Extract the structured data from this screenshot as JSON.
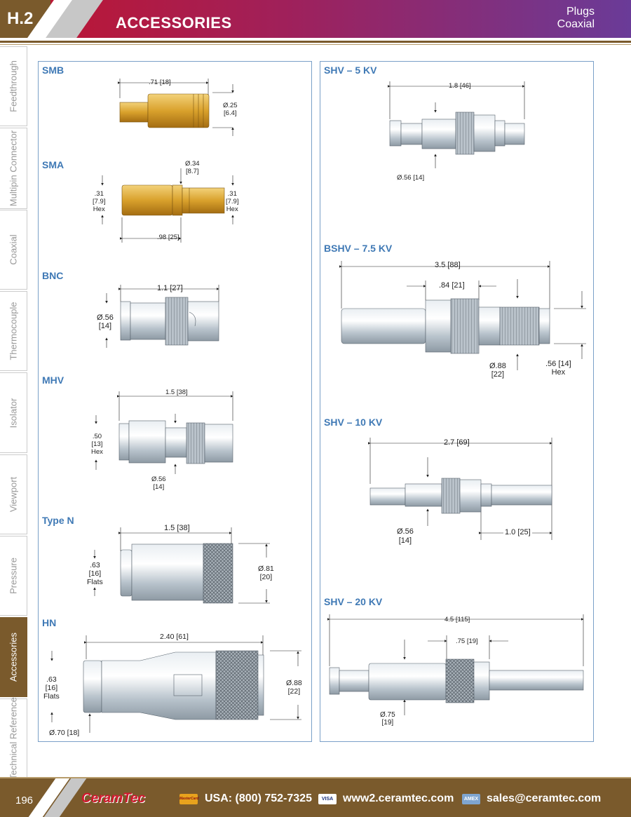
{
  "header": {
    "code": "H.2",
    "title": "ACCESSORIES",
    "subtitle1": "Plugs",
    "subtitle2": "Coaxial"
  },
  "sidebar": {
    "tabs": [
      "Feedthrough",
      "Multipin Connector",
      "Coaxial",
      "Thermocouple",
      "Isolator",
      "Viewport",
      "Pressure",
      "Accessories",
      "Technical Reference"
    ],
    "active": "Accessories"
  },
  "left_panel": {
    "smb": {
      "label": "SMB",
      "len": ".71 [18]",
      "dia1": "Ø.25",
      "dia2": "[6.4]"
    },
    "sma": {
      "label": "SMA",
      "dia1": "Ø.34",
      "dia2": "[8.7]",
      "hexl1": ".31",
      "hexl2": "[7.9]",
      "hexl3": "Hex",
      "hexr1": ".31",
      "hexr2": "[7.9]",
      "hexr3": "Hex",
      "len": ".98 [25]"
    },
    "bnc": {
      "label": "BNC",
      "len": "1.1 [27]",
      "dia1": "Ø.56",
      "dia2": "[14]"
    },
    "mhv": {
      "label": "MHV",
      "len": "1.5 [38]",
      "hex1": ".50",
      "hex2": "[13]",
      "hex3": "Hex",
      "dia1": "Ø.56",
      "dia2": "[14]"
    },
    "typen": {
      "label": "Type N",
      "len": "1.5 [38]",
      "fl1": ".63",
      "fl2": "[16]",
      "fl3": "Flats",
      "dia1": "Ø.81",
      "dia2": "[20]"
    },
    "hn": {
      "label": "HN",
      "len": "2.40 [61]",
      "fl1": ".63",
      "fl2": "[16]",
      "fl3": "Flats",
      "dia1": "Ø.88",
      "dia2": "[22]",
      "dia3": "Ø.70 [18]"
    }
  },
  "right_panel": {
    "shv5": {
      "label": "SHV – 5 KV",
      "len": "1.8 [46]",
      "dia": "Ø.56 [14]"
    },
    "bshv": {
      "label": "BSHV – 7.5 KV",
      "len": "3.5 [88]",
      "len2": ".84 [21]",
      "dia1": "Ø.88",
      "dia2": "[22]",
      "hex1": ".56 [14]",
      "hex2": "Hex"
    },
    "shv10": {
      "label": "SHV – 10 KV",
      "len": "2.7 [69]",
      "dia1": "Ø.56",
      "dia2": "[14]",
      "len2": "1.0 [25]"
    },
    "shv20": {
      "label": "SHV – 20 KV",
      "len": "4.5 [115]",
      "len2": ".75 [19]",
      "dia1": "Ø.75",
      "dia2": "[19]"
    }
  },
  "footer": {
    "page": "196",
    "logo": "CeramTec",
    "mc": "MasterCard",
    "phone": "USA: (800) 752-7325",
    "visa": "VISA",
    "web": "www2.ceramtec.com",
    "amex": "AMEX",
    "email": "sales@ceramtec.com"
  }
}
